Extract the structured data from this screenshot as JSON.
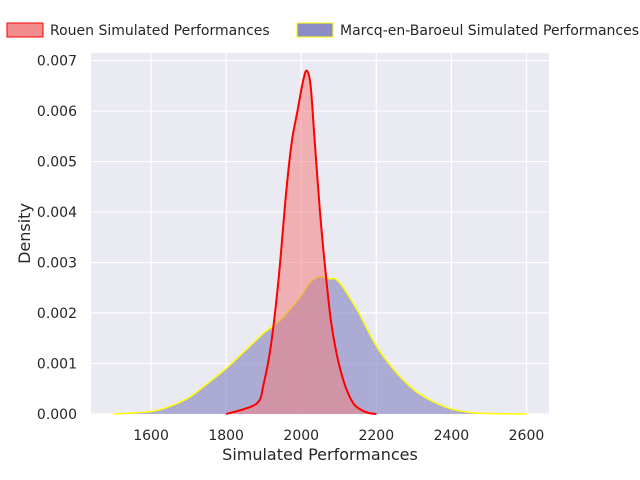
{
  "chart_data": {
    "type": "area",
    "subtype": "kde",
    "xlabel": "Simulated Performances",
    "ylabel": "Density",
    "xlim": [
      1440,
      2660
    ],
    "ylim": [
      0,
      0.00715
    ],
    "xticks": [
      1600,
      1800,
      2000,
      2200,
      2400,
      2600
    ],
    "yticks": [
      0.0,
      0.001,
      0.002,
      0.003,
      0.004,
      0.005,
      0.006,
      0.007
    ],
    "ytick_format": "0.000",
    "grid": true,
    "background": "#eaeaf2",
    "legend_placement": "top, outside plot area",
    "series": [
      {
        "name": "Rouen Simulated Performances",
        "fill_color": "#f08080",
        "line_color": "#ff0000",
        "x": [
          1800,
          1880,
          1900,
          1920,
          1940,
          1960,
          1975,
          1990,
          2005,
          2015,
          2025,
          2035,
          2050,
          2065,
          2080,
          2100,
          2120,
          2140,
          2160,
          2180,
          2200
        ],
        "values": [
          0.0,
          0.0002,
          0.0006,
          0.0014,
          0.0027,
          0.0044,
          0.0054,
          0.006,
          0.0066,
          0.0068,
          0.0065,
          0.0055,
          0.004,
          0.0028,
          0.0018,
          0.001,
          0.0005,
          0.0002,
          8e-05,
          2e-05,
          0.0
        ]
      },
      {
        "name": "Marcq-en-Baroeul Simulated Performances",
        "fill_color": "#8080c0",
        "line_color": "#ffff00",
        "x": [
          1500,
          1600,
          1650,
          1700,
          1750,
          1800,
          1850,
          1900,
          1950,
          2000,
          2025,
          2050,
          2075,
          2100,
          2150,
          2200,
          2250,
          2300,
          2350,
          2400,
          2450,
          2500,
          2550,
          2600
        ],
        "values": [
          0.0,
          5e-05,
          0.00015,
          0.00032,
          0.0006,
          0.0009,
          0.00125,
          0.0016,
          0.0019,
          0.00235,
          0.00262,
          0.00272,
          0.00268,
          0.00262,
          0.00205,
          0.00135,
          0.00085,
          0.00048,
          0.00025,
          0.0001,
          3e-05,
          1e-05,
          3e-06,
          0.0
        ]
      }
    ]
  }
}
